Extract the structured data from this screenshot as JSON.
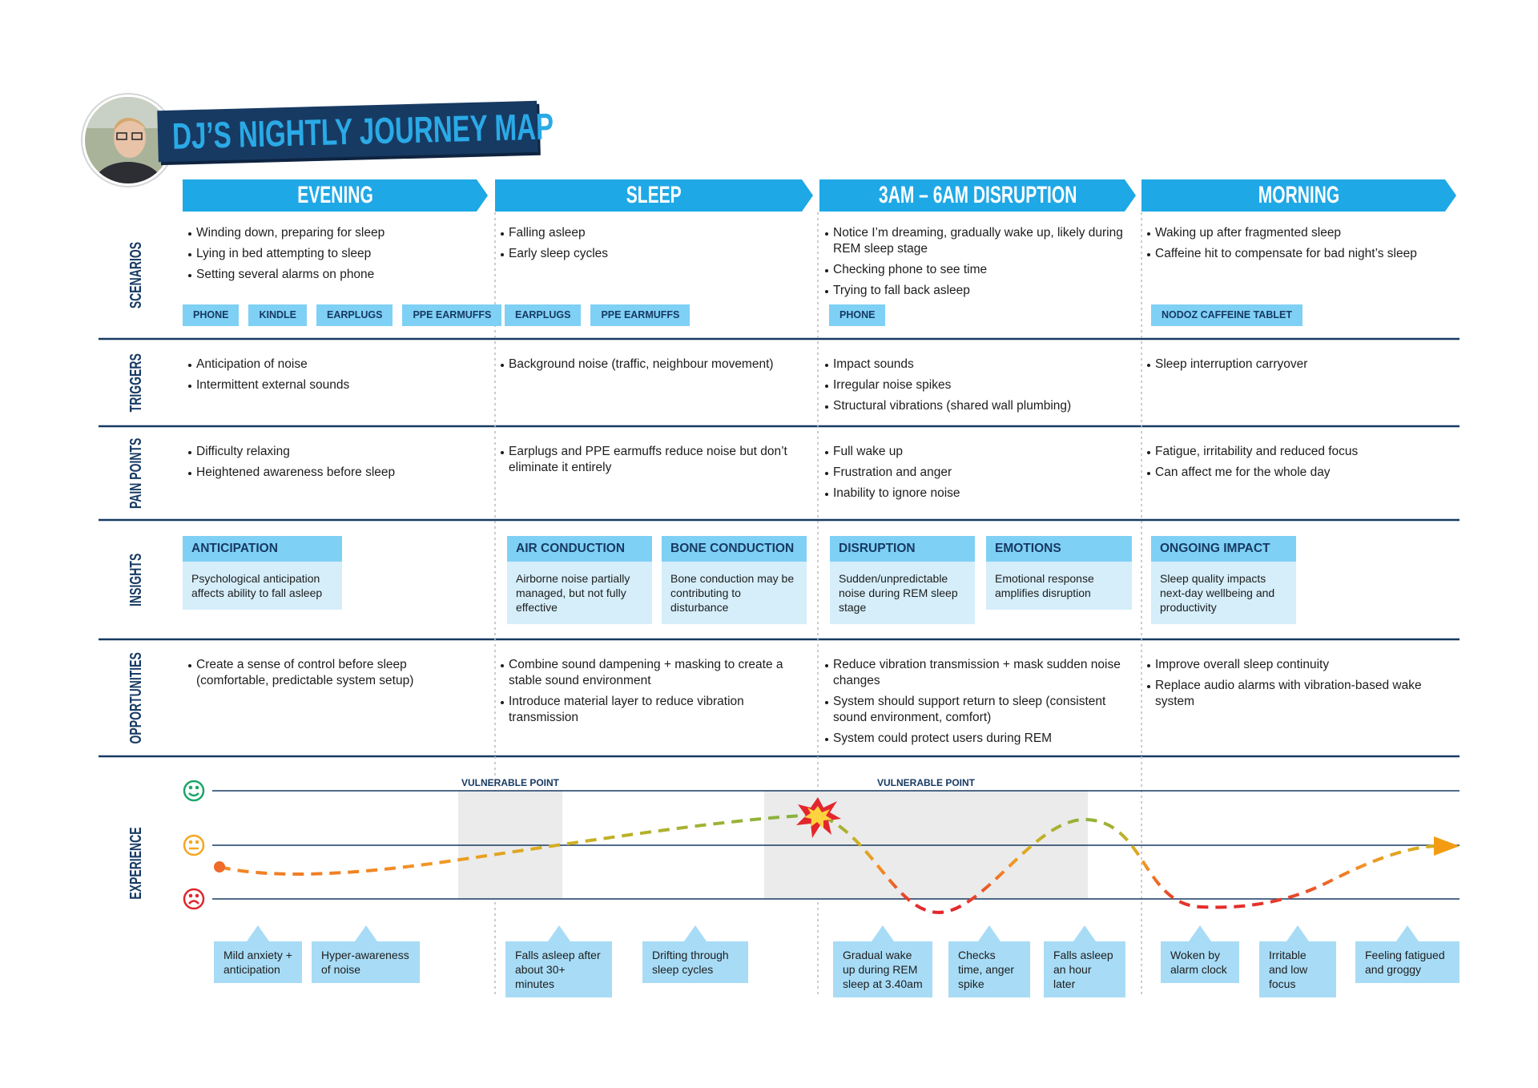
{
  "title": "DJ’S NIGHTLY JOURNEY MAP",
  "stages": [
    "EVENING",
    "SLEEP",
    "3AM – 6AM DISRUPTION",
    "MORNING"
  ],
  "rows": [
    {
      "label": "SCENARIOS",
      "cells": [
        {
          "items": [
            "Winding down, preparing for sleep",
            "Lying in bed attempting to sleep",
            "Setting several alarms on phone"
          ],
          "tags": [
            "PHONE",
            "KINDLE",
            "EARPLUGS",
            "PPE EARMUFFS"
          ]
        },
        {
          "items": [
            "Falling asleep",
            "Early sleep cycles"
          ],
          "tags": [
            "EARPLUGS",
            "PPE EARMUFFS"
          ]
        },
        {
          "items": [
            "Notice I’m dreaming, gradually wake up, likely during REM sleep stage",
            "Checking phone to see time",
            "Trying to fall back asleep"
          ],
          "tags": [
            "PHONE"
          ]
        },
        {
          "items": [
            "Waking up after fragmented sleep",
            "Caffeine hit to compensate for bad night’s sleep"
          ],
          "tags": [
            "NODOZ CAFFEINE TABLET"
          ]
        }
      ]
    },
    {
      "label": "TRIGGERS",
      "cells": [
        {
          "items": [
            "Anticipation of noise",
            "Intermittent external sounds"
          ]
        },
        {
          "items": [
            "Background noise (traffic, neighbour movement)"
          ]
        },
        {
          "items": [
            "Impact sounds",
            "Irregular noise spikes",
            "Structural vibrations (shared wall plumbing)"
          ]
        },
        {
          "items": [
            "Sleep interruption carryover"
          ]
        }
      ]
    },
    {
      "label": "PAIN POINTS",
      "cells": [
        {
          "items": [
            "Difficulty relaxing",
            "Heightened awareness before sleep"
          ]
        },
        {
          "items": [
            "Earplugs and PPE earmuffs reduce noise but don’t eliminate it entirely"
          ]
        },
        {
          "items": [
            "Full wake up",
            "Frustration and anger",
            "Inability to ignore noise"
          ]
        },
        {
          "items": [
            "Fatigue, irritability and reduced focus",
            "Can affect me for the whole day"
          ]
        }
      ]
    },
    {
      "label": "INSIGHTS",
      "cells": [
        {
          "cards": [
            {
              "title": "ANTICIPATION",
              "text": "Psychological anticipation affects ability to fall asleep"
            }
          ]
        },
        {
          "cards": [
            {
              "title": "AIR CONDUCTION",
              "text": "Airborne noise partially managed, but not fully effective"
            },
            {
              "title": "BONE CONDUCTION",
              "text": "Bone conduction may be contributing to disturbance"
            }
          ]
        },
        {
          "cards": [
            {
              "title": "DISRUPTION",
              "text": "Sudden/unpredictable noise during REM sleep stage"
            },
            {
              "title": "EMOTIONS",
              "text": "Emotional response amplifies disruption"
            }
          ]
        },
        {
          "cards": [
            {
              "title": "ONGOING IMPACT",
              "text": "Sleep quality impacts next-day wellbeing and productivity"
            }
          ]
        }
      ]
    },
    {
      "label": "OPPORTUNITIES",
      "cells": [
        {
          "items": [
            "Create a sense of control before sleep (comfortable, predictable system setup)"
          ]
        },
        {
          "items": [
            "Combine sound dampening + masking to create a stable sound environment",
            "Introduce material layer to reduce vibration transmission"
          ]
        },
        {
          "items": [
            "Reduce vibration transmission + mask sudden noise changes",
            "System should support return to sleep (consistent sound environment, comfort)",
            "System could protect users during REM"
          ]
        },
        {
          "items": [
            "Improve overall sleep continuity",
            "Replace audio alarms with vibration-based wake system"
          ]
        }
      ]
    }
  ],
  "experience": {
    "label": "EXPERIENCE",
    "vulnerable": [
      "VULNERABLE POINT",
      "VULNERABLE POINT"
    ],
    "moments": [
      "Mild anxiety + anticipation",
      "Hyper-awareness of noise",
      "Falls asleep after about 30+ minutes",
      "Drifting through sleep cycles",
      "Gradual wake up during REM sleep at 3.40am",
      "Checks time, anger spike",
      "Falls asleep an hour later",
      "Woken by alarm clock",
      "Irritable and low focus",
      "Feeling fatigued and groggy"
    ]
  }
}
